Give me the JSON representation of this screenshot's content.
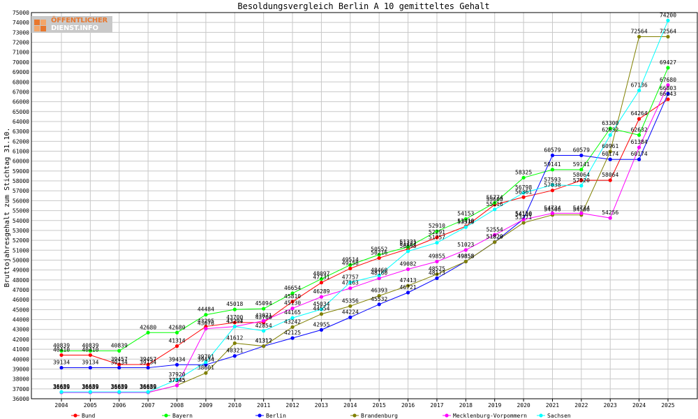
{
  "logo": {
    "line1": "ÖFFENTLICHER",
    "line2": "DIENST.INFO"
  },
  "chart_data": {
    "type": "line",
    "title": "Besoldungsvergleich Berlin A 10 gemitteltes Gehalt",
    "ylabel": "Bruttojahresgehalt zum Stichtag 31.10.",
    "xlabel": "",
    "ylim": [
      36000,
      75000
    ],
    "ytick_step": 1000,
    "grid": true,
    "legend_position": "bottom",
    "categories": [
      "2004",
      "2005",
      "2006",
      "2007",
      "2008",
      "2009",
      "2010",
      "2011",
      "2012",
      "2013",
      "2014",
      "2015",
      "2016",
      "2017",
      "2018",
      "2019",
      "2020",
      "2021",
      "2022",
      "2023",
      "2024",
      "2025"
    ],
    "series": [
      {
        "name": "Bund",
        "color": "#ff0000",
        "values": [
          40410,
          40410,
          39457,
          39457,
          41314,
          43295,
          43700,
          43700,
          45810,
          47731,
          49158,
          50216,
          51127,
          52291,
          53410,
          55600,
          56361,
          57038,
          58064,
          58064,
          64264,
          66243
        ]
      },
      {
        "name": "Bayern",
        "color": "#00ff00",
        "values": [
          40839,
          40839,
          40839,
          42680,
          42680,
          44484,
          45018,
          45094,
          46654,
          48097,
          49514,
          50552,
          51321,
          52910,
          54153,
          55774,
          58325,
          59141,
          59141,
          63300,
          62632,
          69427
        ]
      },
      {
        "name": "Berlin",
        "color": "#0000ff",
        "values": [
          39134,
          39134,
          39134,
          39134,
          39434,
          39434,
          40321,
          41312,
          42125,
          42955,
          44224,
          45532,
          46721,
          48173,
          49858,
          51820,
          54150,
          60579,
          60579,
          60174,
          60174,
          66803
        ]
      },
      {
        "name": "Brandenburg",
        "color": "#808000",
        "values": [
          36639,
          36639,
          36639,
          36639,
          37345,
          38601,
          41612,
          41312,
          43242,
          44554,
          45356,
          46393,
          47413,
          48575,
          49858,
          51820,
          53771,
          54566,
          54566,
          60961,
          72564,
          72564
        ]
      },
      {
        "name": "Mecklenburg-Vorpommern",
        "color": "#ff00ff",
        "values": [
          36639,
          36639,
          36639,
          36639,
          37345,
          43076,
          43294,
          43871,
          45130,
          46289,
          47163,
          48160,
          49082,
          49855,
          51023,
          52554,
          54100,
          54734,
          54734,
          54256,
          61384,
          67680
        ]
      },
      {
        "name": "Sachsen",
        "color": "#00ffff",
        "values": [
          36689,
          36689,
          36689,
          36689,
          37920,
          39701,
          43297,
          42854,
          44165,
          45034,
          47757,
          48460,
          50898,
          51757,
          53330,
          55116,
          56798,
          57593,
          57520,
          62632,
          67136,
          74200
        ]
      }
    ]
  }
}
